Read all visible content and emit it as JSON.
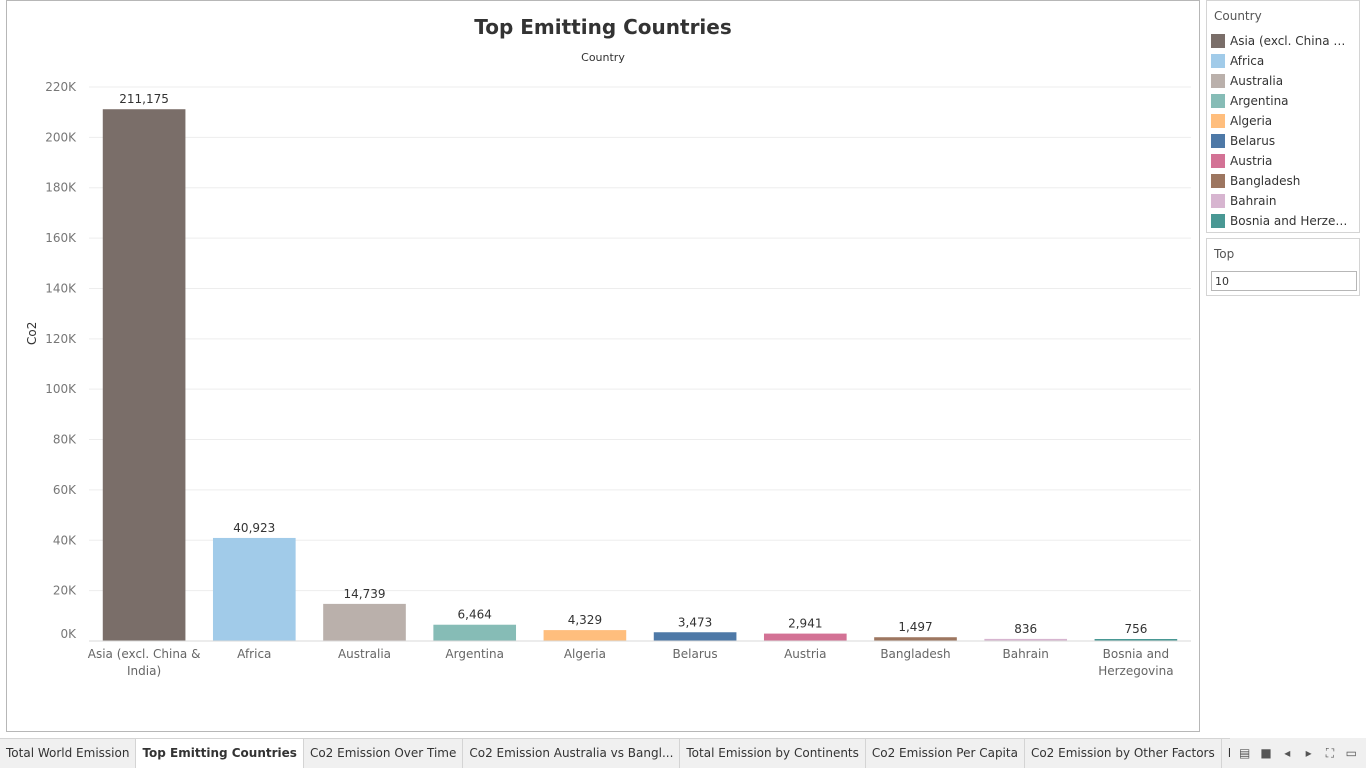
{
  "chart_data": {
    "type": "bar",
    "title": "Top Emitting Countries",
    "header": "Country",
    "ylabel": "Co2",
    "ylim": [
      0,
      220000
    ],
    "yticks": [
      {
        "value": 0,
        "label": "0K"
      },
      {
        "value": 20000,
        "label": "20K"
      },
      {
        "value": 40000,
        "label": "40K"
      },
      {
        "value": 60000,
        "label": "60K"
      },
      {
        "value": 80000,
        "label": "80K"
      },
      {
        "value": 100000,
        "label": "100K"
      },
      {
        "value": 120000,
        "label": "120K"
      },
      {
        "value": 140000,
        "label": "140K"
      },
      {
        "value": 160000,
        "label": "160K"
      },
      {
        "value": 180000,
        "label": "180K"
      },
      {
        "value": 200000,
        "label": "200K"
      },
      {
        "value": 220000,
        "label": "220K"
      }
    ],
    "grid": true,
    "categories": [
      "Asia (excl. China & India)",
      "Africa",
      "Australia",
      "Argentina",
      "Algeria",
      "Belarus",
      "Austria",
      "Bangladesh",
      "Bahrain",
      "Bosnia and Herzegovina"
    ],
    "category_labels": [
      [
        "Asia (excl. China &",
        "India)"
      ],
      [
        "Africa"
      ],
      [
        "Australia"
      ],
      [
        "Argentina"
      ],
      [
        "Algeria"
      ],
      [
        "Belarus"
      ],
      [
        "Austria"
      ],
      [
        "Bangladesh"
      ],
      [
        "Bahrain"
      ],
      [
        "Bosnia and",
        "Herzegovina"
      ]
    ],
    "values": [
      211175,
      40923,
      14739,
      6464,
      4329,
      3473,
      2941,
      1497,
      836,
      756
    ],
    "data_labels": [
      "211,175",
      "40,923",
      "14,739",
      "6,464",
      "4,329",
      "3,473",
      "2,941",
      "1,497",
      "836",
      "756"
    ],
    "colors": [
      "#7a6e69",
      "#a1cbe9",
      "#bab0ab",
      "#86bcb6",
      "#ffbe7d",
      "#4e79a7",
      "#d37295",
      "#9d7660",
      "#d7b5d0",
      "#499894"
    ]
  },
  "legend": {
    "title": "Country",
    "items": [
      {
        "label": "Asia (excl. China & In..",
        "color": "#7a6e69"
      },
      {
        "label": "Africa",
        "color": "#a1cbe9"
      },
      {
        "label": "Australia",
        "color": "#bab0ab"
      },
      {
        "label": "Argentina",
        "color": "#86bcb6"
      },
      {
        "label": "Algeria",
        "color": "#ffbe7d"
      },
      {
        "label": "Belarus",
        "color": "#4e79a7"
      },
      {
        "label": "Austria",
        "color": "#d37295"
      },
      {
        "label": "Bangladesh",
        "color": "#9d7660"
      },
      {
        "label": "Bahrain",
        "color": "#d7b5d0"
      },
      {
        "label": "Bosnia and Herzegov..",
        "color": "#499894"
      }
    ]
  },
  "filter": {
    "title": "Top",
    "value": "10"
  },
  "tabs": [
    {
      "label": "Total World Emission",
      "active": false
    },
    {
      "label": "Top Emitting Countries",
      "active": true
    },
    {
      "label": "Co2 Emission Over Time",
      "active": false
    },
    {
      "label": "Co2 Emission Australia vs Bangl...",
      "active": false
    },
    {
      "label": "Total Emission by Continents",
      "active": false
    },
    {
      "label": "Co2 Emission Per Capita",
      "active": false
    },
    {
      "label": "Co2 Emission by Other Factors",
      "active": false
    },
    {
      "label": "Emission",
      "active": false
    }
  ],
  "controls": [
    {
      "name": "sheet-sorter-icon",
      "glyph": "▤"
    },
    {
      "name": "filmstrip-icon",
      "glyph": "■"
    },
    {
      "name": "prev-sheet-icon",
      "glyph": "◂"
    },
    {
      "name": "next-sheet-icon",
      "glyph": "▸"
    },
    {
      "name": "fullscreen-icon",
      "glyph": "⛶"
    },
    {
      "name": "presentation-icon",
      "glyph": "▭"
    }
  ]
}
